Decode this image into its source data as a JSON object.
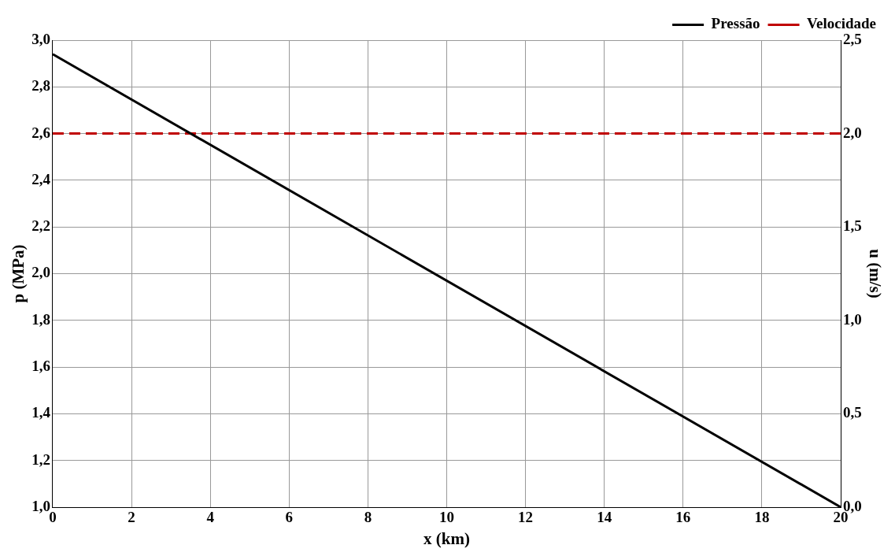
{
  "chart_data": {
    "type": "line",
    "xlabel": "x (km)",
    "ylabel": "p (MPa)",
    "y2label": "u (m/s)",
    "x": [
      0,
      20
    ],
    "series": [
      {
        "name": "Pressão",
        "color": "#000000",
        "values": [
          2.94,
          1.0
        ],
        "line_style": "solid"
      },
      {
        "name": "Velocidade",
        "color": "#c00000",
        "values": [
          2.0,
          2.0
        ],
        "axis": "y2",
        "line_style": "dashed"
      }
    ],
    "xlim": [
      0,
      20
    ],
    "xticks": [
      0,
      2,
      4,
      6,
      8,
      10,
      12,
      14,
      16,
      18,
      20
    ],
    "ylim": [
      1.0,
      3.0
    ],
    "yticks": [
      {
        "value": 1.0,
        "label": "1,0"
      },
      {
        "value": 1.2,
        "label": "1,2"
      },
      {
        "value": 1.4,
        "label": "1,4"
      },
      {
        "value": 1.6,
        "label": "1,6"
      },
      {
        "value": 1.8,
        "label": "1,8"
      },
      {
        "value": 2.0,
        "label": "2,0"
      },
      {
        "value": 2.2,
        "label": "2,2"
      },
      {
        "value": 2.4,
        "label": "2,4"
      },
      {
        "value": 2.6,
        "label": "2,6"
      },
      {
        "value": 2.8,
        "label": "2,8"
      },
      {
        "value": 3.0,
        "label": "3,0"
      }
    ],
    "y2lim": [
      0.0,
      2.5
    ],
    "y2ticks": [
      {
        "value": 0.0,
        "label": "0,0"
      },
      {
        "value": 0.5,
        "label": "0,5"
      },
      {
        "value": 1.0,
        "label": "1,0"
      },
      {
        "value": 1.5,
        "label": "1,5"
      },
      {
        "value": 2.0,
        "label": "2,0"
      },
      {
        "value": 2.5,
        "label": "2,5"
      }
    ],
    "grid": true,
    "legend": "top right",
    "marker": "none"
  }
}
